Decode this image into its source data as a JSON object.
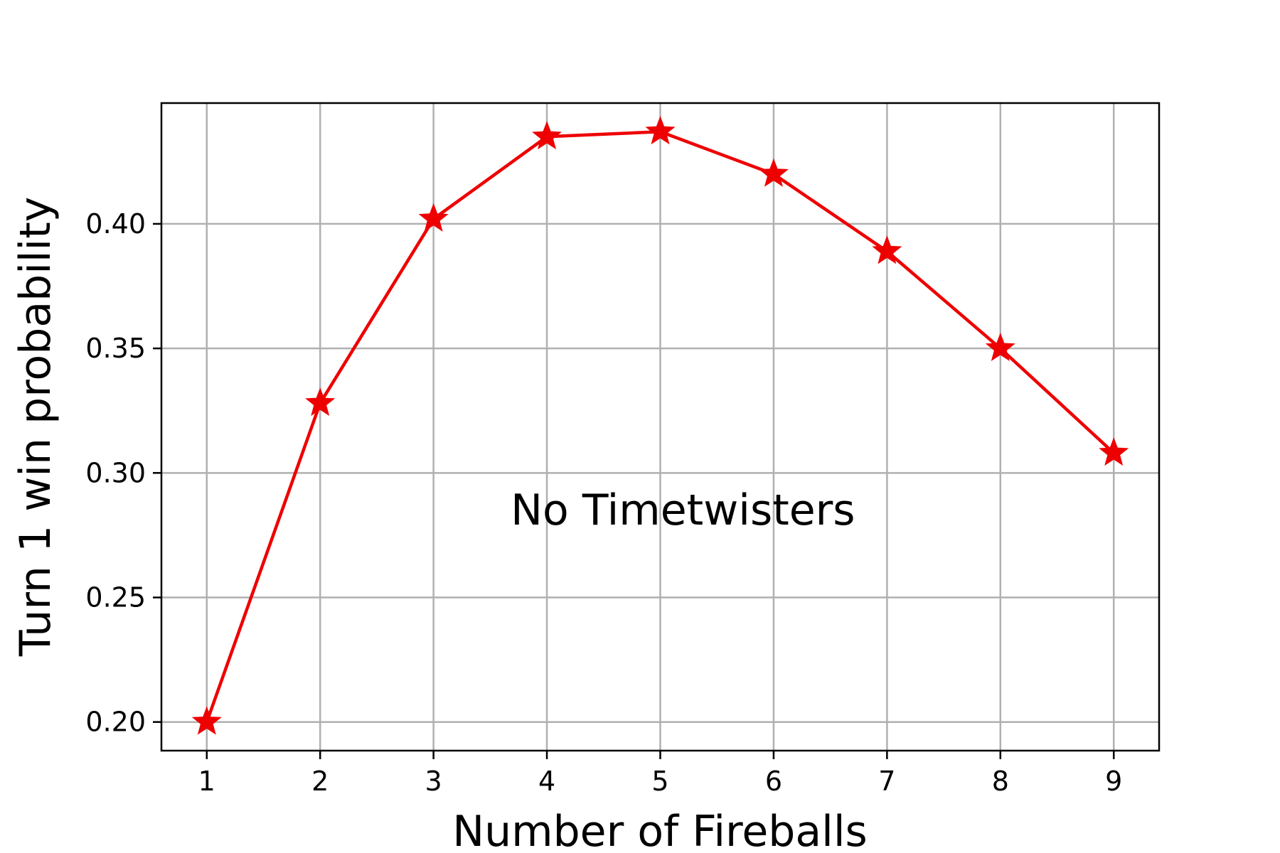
{
  "chart_data": {
    "type": "line",
    "title": "",
    "xlabel": "Number of Fireballs",
    "ylabel": "Turn 1 win probability",
    "x": [
      1,
      2,
      3,
      4,
      5,
      6,
      7,
      8,
      9
    ],
    "series": [
      {
        "values": [
          0.2,
          0.328,
          0.402,
          0.435,
          0.437,
          0.42,
          0.389,
          0.35,
          0.308
        ],
        "color": "#ee0000",
        "marker": "star"
      }
    ],
    "xlim": [
      0.6,
      9.4
    ],
    "ylim": [
      0.1885,
      0.4485
    ],
    "xticks": [
      1,
      2,
      3,
      4,
      5,
      6,
      7,
      8,
      9
    ],
    "yticks": [
      0.2,
      0.25,
      0.3,
      0.35,
      0.4
    ],
    "ytick_labels": [
      "0.20",
      "0.25",
      "0.30",
      "0.35",
      "0.40"
    ],
    "grid": true,
    "grid_color": "#b0b0b0",
    "annotation": {
      "text": "No Timetwisters",
      "x": 5.2,
      "y": 0.285
    }
  }
}
